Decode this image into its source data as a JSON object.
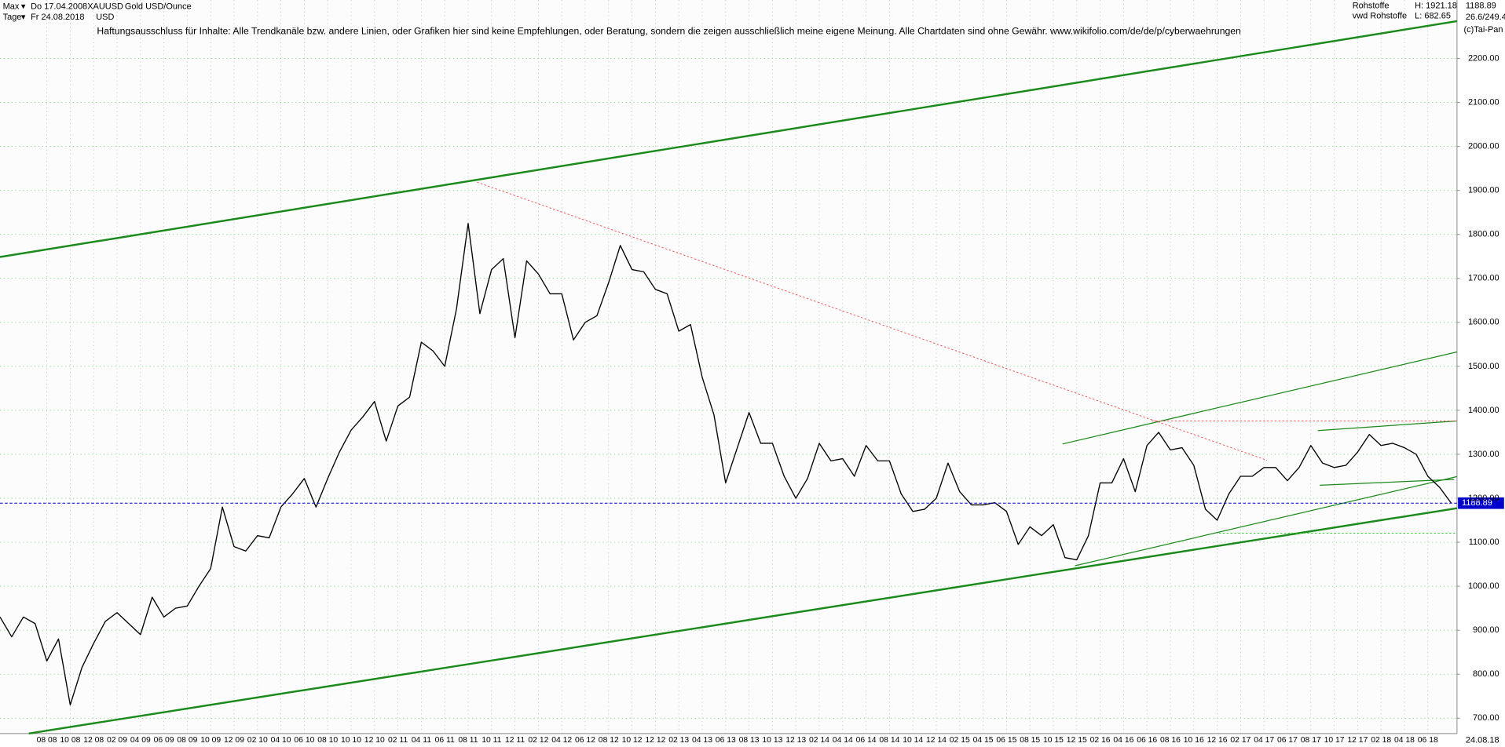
{
  "header": {
    "range": "Max",
    "start_date": "Do 17.04.2008",
    "symbol": "XAUUSD",
    "name": "Gold USD/Ounce",
    "period": "Tage",
    "end_date": "Fr 24.08.2018",
    "currency": "USD",
    "disclaimer": "Haftungsausschluss für Inhalte: Alle Trendkanäle bzw. andere Linien, oder Grafiken hier sind keine Empfehlungen, oder Beratung, sondern die zeigen ausschließlich meine eigene Meinung. Alle Chartdaten sind ohne Gewähr.  www.wikifolio.com/de/de/p/cyberwaehrungen",
    "group": "Rohstoffe",
    "high": "H: 1921.18",
    "source": "vwd Rohstoffe",
    "low": "L: 682.65",
    "ratio": "26.6/249.4",
    "copyright": "(c)Tai-Pan",
    "last_date": "24.08.18"
  },
  "chart_data": {
    "type": "line",
    "categories": [
      null,
      null,
      null,
      null,
      "08 08",
      null,
      "10 08",
      null,
      "12 08",
      null,
      "02 09",
      null,
      "04 09",
      null,
      "06 09",
      null,
      "08 09",
      null,
      "10 09",
      null,
      "12 09",
      null,
      "02 10",
      null,
      "04 10",
      null,
      "06 10",
      null,
      "08 10",
      null,
      "10 10",
      null,
      "12 10",
      null,
      "02 11",
      null,
      "04 11",
      null,
      "06 11",
      null,
      "08 11",
      null,
      "10 11",
      null,
      "12 11",
      null,
      "02 12",
      null,
      "04 12",
      null,
      "06 12",
      null,
      "08 12",
      null,
      "10 12",
      null,
      "12 12",
      null,
      "02 13",
      null,
      "04 13",
      null,
      "06 13",
      null,
      "08 13",
      null,
      "10 13",
      null,
      "12 13",
      null,
      "02 14",
      null,
      "04 14",
      null,
      "06 14",
      null,
      "08 14",
      null,
      "10 14",
      null,
      "12 14",
      null,
      "02 15",
      null,
      "04 15",
      null,
      "06 15",
      null,
      "08 15",
      null,
      "10 15",
      null,
      "12 15",
      null,
      "02 16",
      null,
      "04 16",
      null,
      "06 16",
      null,
      "08 16",
      null,
      "10 16",
      null,
      "12 16",
      null,
      "02 17",
      null,
      "04 17",
      null,
      "06 17",
      null,
      "08 17",
      null,
      "10 17",
      null,
      "12 17",
      null,
      "02 18",
      null,
      "04 18",
      null,
      "06 18",
      null,
      null
    ],
    "series": [
      {
        "name": "XAUUSD",
        "color": "#000000",
        "values": [
          930,
          885,
          930,
          915,
          830,
          880,
          730,
          815,
          870,
          920,
          940,
          915,
          890,
          975,
          930,
          950,
          955,
          1000,
          1040,
          1180,
          1090,
          1080,
          1115,
          1110,
          1180,
          1210,
          1245,
          1180,
          1245,
          1305,
          1355,
          1385,
          1420,
          1330,
          1410,
          1430,
          1555,
          1535,
          1500,
          1630,
          1825,
          1620,
          1720,
          1745,
          1565,
          1740,
          1710,
          1665,
          1665,
          1560,
          1600,
          1615,
          1690,
          1775,
          1720,
          1715,
          1675,
          1665,
          1580,
          1595,
          1475,
          1390,
          1235,
          1315,
          1395,
          1325,
          1325,
          1250,
          1200,
          1245,
          1325,
          1285,
          1290,
          1250,
          1320,
          1285,
          1285,
          1210,
          1170,
          1175,
          1200,
          1280,
          1215,
          1185,
          1185,
          1190,
          1170,
          1095,
          1135,
          1115,
          1140,
          1065,
          1060,
          1115,
          1235,
          1235,
          1290,
          1215,
          1320,
          1350,
          1310,
          1315,
          1275,
          1175,
          1150,
          1210,
          1250,
          1250,
          1270,
          1270,
          1240,
          1270,
          1320,
          1280,
          1270,
          1275,
          1305,
          1345,
          1320,
          1325,
          1315,
          1300,
          1250,
          1225,
          1188.89
        ]
      }
    ],
    "last_color": "#0000cc",
    "ylim": [
      665,
      2333
    ],
    "yticks": [
      {
        "value": 700,
        "label": "700.00"
      },
      {
        "value": 800,
        "label": "800.00"
      },
      {
        "value": 900,
        "label": "900.00"
      },
      {
        "value": 1000,
        "label": "1000.00"
      },
      {
        "value": 1100,
        "label": "1100.00"
      },
      {
        "value": 1200,
        "label": "1200.00"
      },
      {
        "value": 1300,
        "label": "1300.00"
      },
      {
        "value": 1400,
        "label": "1400.00"
      },
      {
        "value": 1500,
        "label": "1500.00"
      },
      {
        "value": 1600,
        "label": "1600.00"
      },
      {
        "value": 1700,
        "label": "1700.00"
      },
      {
        "value": 1800,
        "label": "1800.00"
      },
      {
        "value": 1900,
        "label": "1900.00"
      },
      {
        "value": 2000,
        "label": "2000.00"
      },
      {
        "value": 2100,
        "label": "2100.00"
      },
      {
        "value": 2200,
        "label": "2200.00"
      }
    ],
    "grid": true
  }
}
